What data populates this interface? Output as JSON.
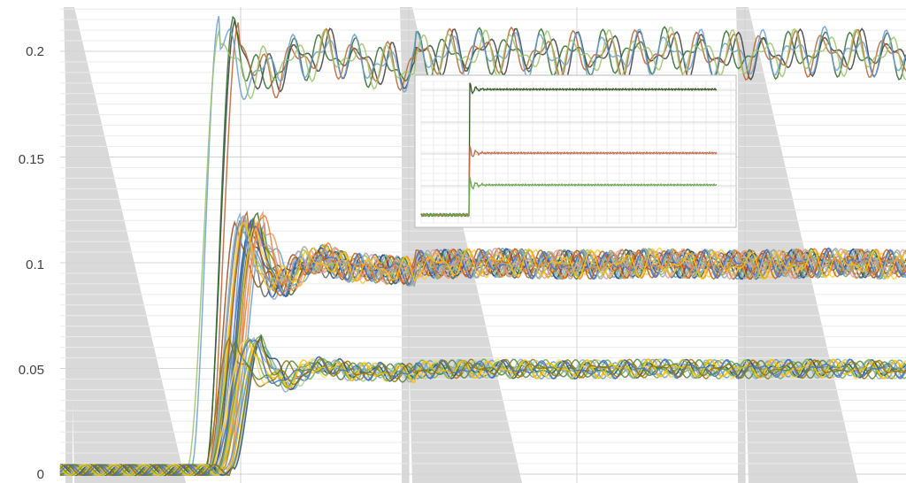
{
  "chart_data": [
    {
      "type": "line",
      "title": "",
      "xlabel": "",
      "ylabel": "",
      "ylim": [
        0,
        0.22
      ],
      "yticks": [
        0,
        0.05,
        0.1,
        0.15,
        0.2
      ],
      "ytick_labels": [
        "0",
        "0.05",
        "0.1",
        "0.15",
        "0.2"
      ],
      "xlim": [
        0,
        1000
      ],
      "grid": true,
      "legend": "none",
      "levels": [
        {
          "group": "high",
          "start": 0.002,
          "step_level": 0.2,
          "overshoot": 0.213,
          "series_count": 5,
          "colors": [
            "#3b3b3b",
            "#2e6b2e",
            "#c0622a",
            "#6a9fd6",
            "#9bc46a"
          ]
        },
        {
          "group": "mid",
          "start": 0.002,
          "step_level": 0.1,
          "overshoot": 0.121,
          "series_count": 24,
          "colors": [
            "#4472c4",
            "#ed7d31",
            "#a5a5a5",
            "#ffc000",
            "#5b9bd5",
            "#70ad47",
            "#264478",
            "#9e480e",
            "#636363",
            "#997300",
            "#255e91",
            "#43682b",
            "#698ed0",
            "#f1975a",
            "#b7b7b7",
            "#ffcd33",
            "#7cafdd",
            "#8cc168",
            "#c55a11",
            "#e2a0a0"
          ]
        },
        {
          "group": "low",
          "start": 0.002,
          "step_level": 0.05,
          "overshoot": 0.064,
          "series_count": 14,
          "colors": [
            "#70ad47",
            "#ffc000",
            "#4472c4",
            "#997300",
            "#5b9bd5",
            "#a9d18e",
            "#264478",
            "#ffd966",
            "#8faadc",
            "#548235"
          ]
        }
      ],
      "background_shapes": "grey sawtooth triangles"
    },
    {
      "type": "line",
      "role": "inset",
      "title": "",
      "xlabel": "",
      "ylabel": "",
      "grid": true,
      "legend": "none",
      "series": [
        {
          "level": 0.2,
          "color": "#3a5a2a"
        },
        {
          "level": 0.1,
          "color": "#c07050"
        },
        {
          "level": 0.05,
          "color": "#6aaa50"
        }
      ]
    }
  ]
}
